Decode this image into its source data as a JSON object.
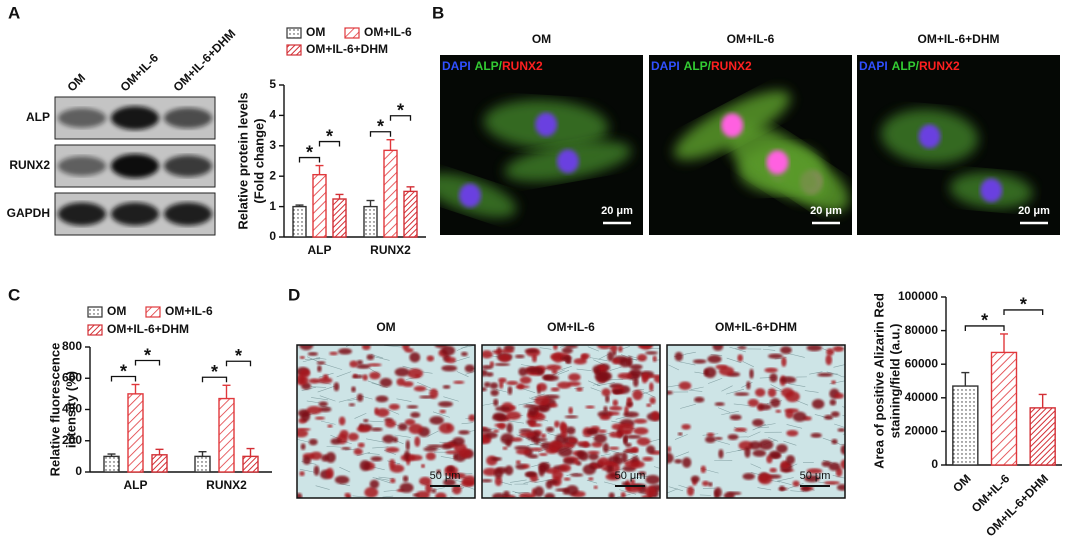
{
  "panel_labels": [
    "A",
    "B",
    "C",
    "D"
  ],
  "blot": {
    "lanes": [
      "OM",
      "OM+IL-6",
      "OM+IL-6+DHM"
    ],
    "proteins": [
      "ALP",
      "RUNX2",
      "GAPDH"
    ]
  },
  "immunofluorescence": {
    "groups": [
      "OM",
      "OM+IL-6",
      "OM+IL-6+DHM"
    ],
    "stain": [
      "DAPI",
      "ALP",
      "/",
      "RUNX2"
    ],
    "scale_bar": "20 μm"
  },
  "alizarin": {
    "groups": [
      "OM",
      "OM+IL-6",
      "OM+IL-6+DHM"
    ],
    "scale_bar": "50 μm"
  },
  "chart_data": [
    {
      "type": "bar",
      "ylabel": [
        "Relative protein levels",
        "(Fold change)"
      ],
      "categories": [
        "ALP",
        "RUNX2"
      ],
      "series": [
        {
          "name": "OM",
          "color": "#333333",
          "values": [
            1.0,
            1.0
          ],
          "errors": [
            0.05,
            0.2
          ]
        },
        {
          "name": "OM+IL-6",
          "color": "#e0383c",
          "values": [
            2.05,
            2.85
          ],
          "errors": [
            0.3,
            0.35
          ]
        },
        {
          "name": "OM+IL-6+DHM",
          "color": "#d32f35",
          "values": [
            1.25,
            1.5
          ],
          "errors": [
            0.15,
            0.15
          ]
        }
      ],
      "ylim": [
        0,
        5
      ],
      "yticks": [
        0,
        1,
        2,
        3,
        4,
        5
      ],
      "comparisons": [
        {
          "label": "*",
          "category": 0,
          "series": [
            0,
            1
          ]
        },
        {
          "label": "*",
          "category": 0,
          "series": [
            1,
            2
          ]
        },
        {
          "label": "*",
          "category": 1,
          "series": [
            0,
            1
          ]
        },
        {
          "label": "*",
          "category": 1,
          "series": [
            1,
            2
          ]
        }
      ]
    },
    {
      "type": "bar",
      "ylabel": [
        "Relative fluorescence",
        "intensity (%)"
      ],
      "categories": [
        "ALP",
        "RUNX2"
      ],
      "series": [
        {
          "name": "OM",
          "color": "#333333",
          "values": [
            100,
            100
          ],
          "errors": [
            15,
            30
          ]
        },
        {
          "name": "OM+IL-6",
          "color": "#e0383c",
          "values": [
            500,
            470
          ],
          "errors": [
            60,
            85
          ]
        },
        {
          "name": "OM+IL-6+DHM",
          "color": "#d32f35",
          "values": [
            110,
            100
          ],
          "errors": [
            35,
            50
          ]
        }
      ],
      "ylim": [
        0,
        800
      ],
      "yticks": [
        0,
        200,
        400,
        600,
        800
      ],
      "comparisons": [
        {
          "label": "*",
          "category": 0,
          "series": [
            0,
            1
          ]
        },
        {
          "label": "*",
          "category": 0,
          "series": [
            1,
            2
          ]
        },
        {
          "label": "*",
          "category": 1,
          "series": [
            0,
            1
          ]
        },
        {
          "label": "*",
          "category": 1,
          "series": [
            1,
            2
          ]
        }
      ]
    },
    {
      "type": "bar",
      "ylabel": [
        "Area of positive Alizarin Red",
        "staining/field (a.u.)"
      ],
      "categories": [
        "OM",
        "OM+IL-6",
        "OM+IL-6+DHM"
      ],
      "values": [
        47000,
        67000,
        34000
      ],
      "errors": [
        8000,
        11000,
        8000
      ],
      "colors": [
        "#333333",
        "#e0383c",
        "#d32f35"
      ],
      "ylim": [
        0,
        100000
      ],
      "yticks": [
        0,
        20000,
        40000,
        60000,
        80000,
        100000
      ],
      "comparisons": [
        {
          "label": "*",
          "bars": [
            0,
            1
          ]
        },
        {
          "label": "*",
          "bars": [
            1,
            2
          ]
        }
      ]
    }
  ]
}
